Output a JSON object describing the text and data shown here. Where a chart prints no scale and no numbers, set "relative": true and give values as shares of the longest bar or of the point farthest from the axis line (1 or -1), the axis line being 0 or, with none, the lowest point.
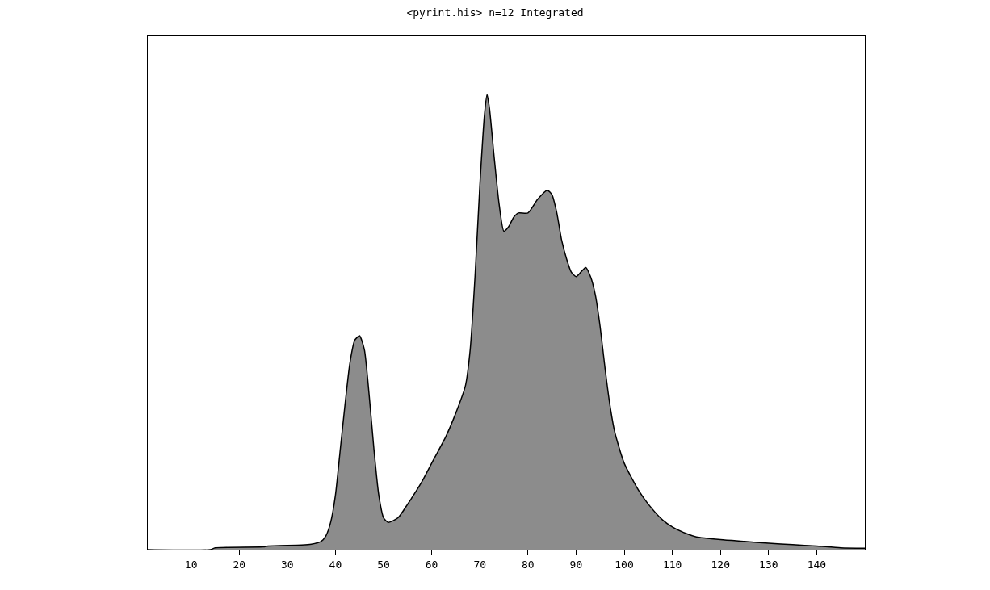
{
  "chart_data": {
    "type": "area",
    "title": "<pyrint.his> n=12 Integrated",
    "relative": true,
    "x": [
      1,
      14,
      15,
      25,
      26,
      33,
      35,
      37,
      38,
      39,
      40,
      41,
      42,
      43,
      44,
      45,
      46,
      47,
      48,
      49,
      50,
      51,
      53,
      55,
      58,
      60,
      63,
      65,
      67,
      68,
      69,
      70,
      71,
      71.5,
      72,
      73,
      74,
      75,
      76,
      77,
      78,
      80,
      82,
      84,
      85,
      86,
      87,
      88,
      89,
      90,
      91,
      92,
      93,
      94,
      95,
      96,
      97,
      98,
      100,
      103,
      105,
      108,
      110,
      113,
      115,
      120,
      125,
      130,
      135,
      140,
      145,
      150
    ],
    "series": [
      {
        "color": "#8c8c8c",
        "values": [
          0,
          0,
          0.004,
          0.006,
          0.008,
          0.01,
          0.012,
          0.018,
          0.03,
          0.06,
          0.12,
          0.22,
          0.32,
          0.41,
          0.46,
          0.47,
          0.44,
          0.34,
          0.22,
          0.12,
          0.07,
          0.06,
          0.07,
          0.1,
          0.15,
          0.19,
          0.25,
          0.3,
          0.36,
          0.44,
          0.6,
          0.8,
          0.96,
          1.0,
          0.97,
          0.86,
          0.76,
          0.7,
          0.71,
          0.73,
          0.74,
          0.74,
          0.77,
          0.79,
          0.78,
          0.74,
          0.68,
          0.64,
          0.61,
          0.6,
          0.61,
          0.62,
          0.6,
          0.56,
          0.49,
          0.4,
          0.32,
          0.26,
          0.19,
          0.13,
          0.1,
          0.065,
          0.05,
          0.035,
          0.028,
          0.022,
          0.018,
          0.014,
          0.011,
          0.008,
          0.004,
          0.003
        ]
      }
    ],
    "xlim": [
      1,
      150
    ],
    "xticks": [
      10,
      20,
      30,
      40,
      50,
      60,
      70,
      80,
      90,
      100,
      110,
      120,
      130,
      140
    ]
  }
}
